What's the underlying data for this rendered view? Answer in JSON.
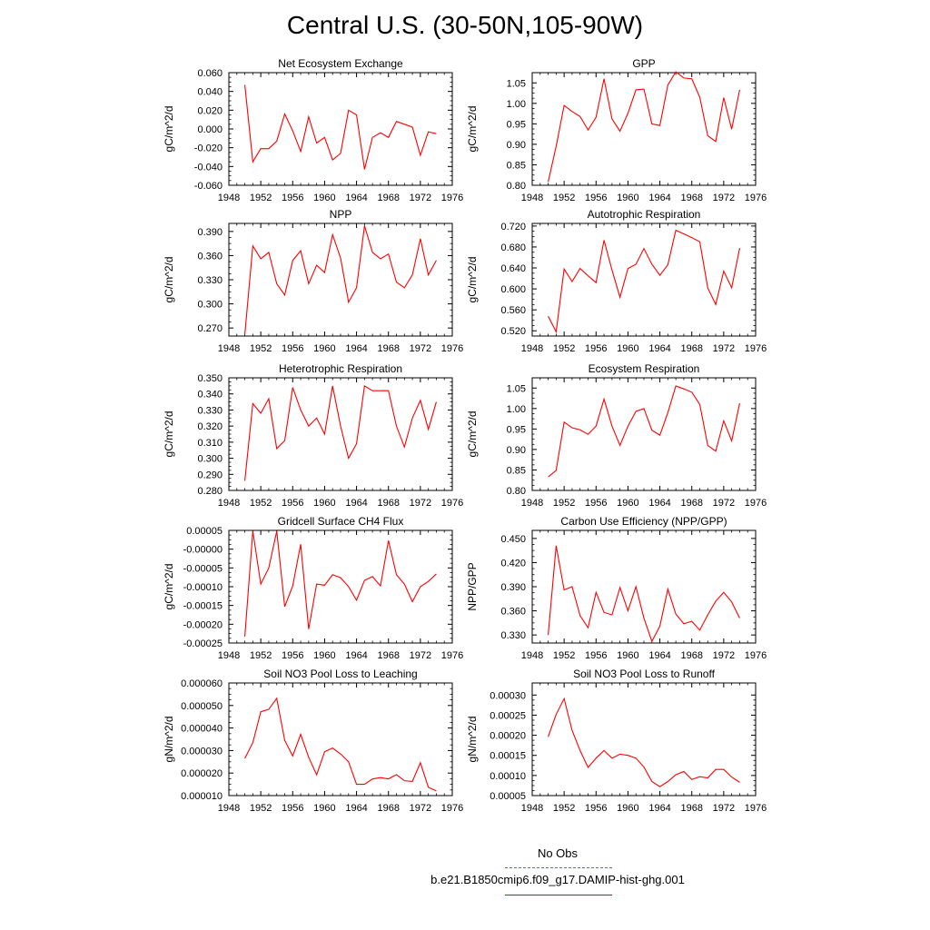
{
  "page_title": "Central U.S. (30-50N,105-90W)",
  "legend": {
    "items": [
      {
        "label": "No Obs",
        "color": "#5f5fdf",
        "style": "dashed"
      },
      {
        "label": "b.e21.B1850cmip6.f09_g17.DAMIP-hist-ghg.001",
        "color": "#e00000",
        "style": "solid"
      }
    ]
  },
  "line_color": "#ff0000",
  "chart_data": [
    {
      "type": "line",
      "title": "Net Ecosystem Exchange",
      "xlabel": "",
      "ylabel": "gC/m^2/d",
      "xlim": [
        1948,
        1976
      ],
      "ylim": [
        -0.06,
        0.06
      ],
      "xticks": [
        1948,
        1952,
        1956,
        1960,
        1964,
        1968,
        1972,
        1976
      ],
      "yticks": [
        -0.06,
        -0.04,
        -0.02,
        0.0,
        0.02,
        0.04,
        0.06
      ],
      "ytick_labels": [
        "-0.060",
        "-0.040",
        "-0.020",
        "0.000",
        "0.020",
        "0.040",
        "0.060"
      ],
      "x": [
        1950,
        1951,
        1952,
        1953,
        1954,
        1955,
        1956,
        1957,
        1958,
        1959,
        1960,
        1961,
        1962,
        1963,
        1964,
        1965,
        1966,
        1967,
        1968,
        1969,
        1970,
        1971,
        1972,
        1973,
        1974
      ],
      "series": [
        {
          "values": [
            0.047,
            -0.035,
            -0.021,
            -0.021,
            -0.013,
            0.016,
            -0.002,
            -0.024,
            0.013,
            -0.015,
            -0.009,
            -0.033,
            -0.026,
            0.02,
            0.015,
            -0.043,
            -0.009,
            -0.004,
            -0.009,
            0.008,
            0.005,
            0.002,
            -0.028,
            -0.003,
            -0.005
          ]
        }
      ]
    },
    {
      "type": "line",
      "title": "GPP",
      "xlabel": "",
      "ylabel": "gC/m^2/d",
      "xlim": [
        1948,
        1976
      ],
      "ylim": [
        0.8,
        1.075
      ],
      "xticks": [
        1948,
        1952,
        1956,
        1960,
        1964,
        1968,
        1972,
        1976
      ],
      "yticks": [
        0.8,
        0.85,
        0.9,
        0.95,
        1.0,
        1.05
      ],
      "ytick_labels": [
        "0.80",
        "0.85",
        "0.90",
        "0.95",
        "1.00",
        "1.05"
      ],
      "x": [
        1950,
        1951,
        1952,
        1953,
        1954,
        1955,
        1956,
        1957,
        1958,
        1959,
        1960,
        1961,
        1962,
        1963,
        1964,
        1965,
        1966,
        1967,
        1968,
        1969,
        1970,
        1971,
        1972,
        1973,
        1974
      ],
      "series": [
        {
          "values": [
            0.808,
            0.895,
            0.995,
            0.98,
            0.968,
            0.935,
            0.966,
            1.06,
            0.962,
            0.932,
            0.976,
            1.033,
            1.035,
            0.95,
            0.946,
            1.045,
            1.077,
            1.062,
            1.06,
            1.015,
            0.921,
            0.907,
            1.014,
            0.937,
            1.033
          ]
        }
      ]
    },
    {
      "type": "line",
      "title": "NPP",
      "xlabel": "",
      "ylabel": "gC/m^2/d",
      "xlim": [
        1948,
        1976
      ],
      "ylim": [
        0.26,
        0.4
      ],
      "xticks": [
        1948,
        1952,
        1956,
        1960,
        1964,
        1968,
        1972,
        1976
      ],
      "yticks": [
        0.27,
        0.3,
        0.33,
        0.36,
        0.39
      ],
      "ytick_labels": [
        "0.270",
        "0.300",
        "0.330",
        "0.360",
        "0.390"
      ],
      "x": [
        1950,
        1951,
        1952,
        1953,
        1954,
        1955,
        1956,
        1957,
        1958,
        1959,
        1960,
        1961,
        1962,
        1963,
        1964,
        1965,
        1966,
        1967,
        1968,
        1969,
        1970,
        1971,
        1972,
        1973,
        1974
      ],
      "series": [
        {
          "values": [
            0.262,
            0.372,
            0.356,
            0.364,
            0.325,
            0.311,
            0.354,
            0.366,
            0.325,
            0.348,
            0.339,
            0.386,
            0.357,
            0.302,
            0.32,
            0.397,
            0.364,
            0.356,
            0.362,
            0.327,
            0.32,
            0.336,
            0.381,
            0.336,
            0.354
          ]
        }
      ]
    },
    {
      "type": "line",
      "title": "Autotrophic Respiration",
      "xlabel": "",
      "ylabel": "gC/m^2/d",
      "xlim": [
        1948,
        1976
      ],
      "ylim": [
        0.51,
        0.725
      ],
      "xticks": [
        1948,
        1952,
        1956,
        1960,
        1964,
        1968,
        1972,
        1976
      ],
      "yticks": [
        0.52,
        0.56,
        0.6,
        0.64,
        0.68,
        0.72
      ],
      "ytick_labels": [
        "0.520",
        "0.560",
        "0.600",
        "0.640",
        "0.680",
        "0.720"
      ],
      "x": [
        1950,
        1951,
        1952,
        1953,
        1954,
        1955,
        1956,
        1957,
        1958,
        1959,
        1960,
        1961,
        1962,
        1963,
        1964,
        1965,
        1966,
        1967,
        1968,
        1969,
        1970,
        1971,
        1972,
        1973,
        1974
      ],
      "series": [
        {
          "values": [
            0.548,
            0.518,
            0.638,
            0.614,
            0.639,
            0.625,
            0.612,
            0.693,
            0.636,
            0.584,
            0.639,
            0.647,
            0.677,
            0.647,
            0.626,
            0.646,
            0.712,
            0.705,
            0.698,
            0.69,
            0.602,
            0.57,
            0.634,
            0.602,
            0.678
          ]
        }
      ]
    },
    {
      "type": "line",
      "title": "Heterotrophic Respiration",
      "xlabel": "",
      "ylabel": "gC/m^2/d",
      "xlim": [
        1948,
        1976
      ],
      "ylim": [
        0.28,
        0.35
      ],
      "xticks": [
        1948,
        1952,
        1956,
        1960,
        1964,
        1968,
        1972,
        1976
      ],
      "yticks": [
        0.28,
        0.29,
        0.3,
        0.31,
        0.32,
        0.33,
        0.34,
        0.35
      ],
      "ytick_labels": [
        "0.280",
        "0.290",
        "0.300",
        "0.310",
        "0.320",
        "0.330",
        "0.340",
        "0.350"
      ],
      "x": [
        1950,
        1951,
        1952,
        1953,
        1954,
        1955,
        1956,
        1957,
        1958,
        1959,
        1960,
        1961,
        1962,
        1963,
        1964,
        1965,
        1966,
        1967,
        1968,
        1969,
        1970,
        1971,
        1972,
        1973,
        1974
      ],
      "series": [
        {
          "values": [
            0.286,
            0.334,
            0.328,
            0.337,
            0.306,
            0.311,
            0.344,
            0.33,
            0.32,
            0.325,
            0.315,
            0.345,
            0.32,
            0.3,
            0.309,
            0.345,
            0.342,
            0.342,
            0.342,
            0.32,
            0.307,
            0.325,
            0.336,
            0.318,
            0.335
          ]
        }
      ]
    },
    {
      "type": "line",
      "title": "Ecosystem Respiration",
      "xlabel": "",
      "ylabel": "gC/m^2/d",
      "xlim": [
        1948,
        1976
      ],
      "ylim": [
        0.8,
        1.075
      ],
      "xticks": [
        1948,
        1952,
        1956,
        1960,
        1964,
        1968,
        1972,
        1976
      ],
      "yticks": [
        0.8,
        0.85,
        0.9,
        0.95,
        1.0,
        1.05
      ],
      "ytick_labels": [
        "0.80",
        "0.85",
        "0.90",
        "0.95",
        "1.00",
        "1.05"
      ],
      "x": [
        1950,
        1951,
        1952,
        1953,
        1954,
        1955,
        1956,
        1957,
        1958,
        1959,
        1960,
        1961,
        1962,
        1963,
        1964,
        1965,
        1966,
        1967,
        1968,
        1969,
        1970,
        1971,
        1972,
        1973,
        1974
      ],
      "series": [
        {
          "values": [
            0.833,
            0.849,
            0.967,
            0.953,
            0.948,
            0.937,
            0.957,
            1.023,
            0.957,
            0.91,
            0.957,
            0.993,
            1.0,
            0.947,
            0.935,
            0.99,
            1.055,
            1.048,
            1.04,
            1.01,
            0.91,
            0.896,
            0.97,
            0.921,
            1.013
          ]
        }
      ]
    },
    {
      "type": "line",
      "title": "Gridcell Surface CH4 Flux",
      "xlabel": "",
      "ylabel": "gC/m^2/d",
      "xlim": [
        1948,
        1976
      ],
      "ylim": [
        -0.00025,
        5e-05
      ],
      "xticks": [
        1948,
        1952,
        1956,
        1960,
        1964,
        1968,
        1972,
        1976
      ],
      "yticks": [
        -0.00025,
        -0.0002,
        -0.00015,
        -0.0001,
        -5e-05,
        0.0,
        5e-05
      ],
      "ytick_labels": [
        "-0.00025",
        "-0.00020",
        "-0.00015",
        "-0.00010",
        "-0.00005",
        "-0.00000",
        "0.00005"
      ],
      "x": [
        1950,
        1951,
        1952,
        1953,
        1954,
        1955,
        1956,
        1957,
        1958,
        1959,
        1960,
        1961,
        1962,
        1963,
        1964,
        1965,
        1966,
        1967,
        1968,
        1969,
        1970,
        1971,
        1972,
        1973,
        1974
      ],
      "series": [
        {
          "values": [
            -0.000233,
            4.8e-05,
            -9.3e-05,
            -5e-05,
            4.8e-05,
            -0.000153,
            -9.8e-05,
            1.3e-05,
            -0.000213,
            -9.3e-05,
            -9.6e-05,
            -6.8e-05,
            -7.6e-05,
            -0.0001,
            -0.000136,
            -8.3e-05,
            -7.3e-05,
            -9.8e-05,
            2.3e-05,
            -6.8e-05,
            -9.3e-05,
            -0.00014,
            -0.0001,
            -8.6e-05,
            -6.6e-05
          ]
        }
      ]
    },
    {
      "type": "line",
      "title": "Carbon Use Efficiency (NPP/GPP)",
      "xlabel": "",
      "ylabel": "NPP/GPP",
      "xlim": [
        1948,
        1976
      ],
      "ylim": [
        0.32,
        0.46
      ],
      "xticks": [
        1948,
        1952,
        1956,
        1960,
        1964,
        1968,
        1972,
        1976
      ],
      "yticks": [
        0.33,
        0.36,
        0.39,
        0.42,
        0.45
      ],
      "ytick_labels": [
        "0.330",
        "0.360",
        "0.390",
        "0.420",
        "0.450"
      ],
      "x": [
        1950,
        1951,
        1952,
        1953,
        1954,
        1955,
        1956,
        1957,
        1958,
        1959,
        1960,
        1961,
        1962,
        1963,
        1964,
        1965,
        1966,
        1967,
        1968,
        1969,
        1970,
        1971,
        1972,
        1973,
        1974
      ],
      "series": [
        {
          "values": [
            0.33,
            0.441,
            0.386,
            0.39,
            0.354,
            0.339,
            0.383,
            0.358,
            0.355,
            0.389,
            0.36,
            0.39,
            0.351,
            0.322,
            0.341,
            0.387,
            0.356,
            0.344,
            0.347,
            0.336,
            0.355,
            0.372,
            0.383,
            0.371,
            0.351
          ]
        }
      ]
    },
    {
      "type": "line",
      "title": "Soil NO3 Pool Loss to Leaching",
      "xlabel": "",
      "ylabel": "gN/m^2/d",
      "xlim": [
        1948,
        1976
      ],
      "ylim": [
        1e-05,
        6e-05
      ],
      "xticks": [
        1948,
        1952,
        1956,
        1960,
        1964,
        1968,
        1972,
        1976
      ],
      "yticks": [
        1e-05,
        2e-05,
        3e-05,
        4e-05,
        5e-05,
        6e-05
      ],
      "ytick_labels": [
        "0.000010",
        "0.000020",
        "0.000030",
        "0.000040",
        "0.000050",
        "0.000060"
      ],
      "x": [
        1950,
        1951,
        1952,
        1953,
        1954,
        1955,
        1956,
        1957,
        1958,
        1959,
        1960,
        1961,
        1962,
        1963,
        1964,
        1965,
        1966,
        1967,
        1968,
        1969,
        1970,
        1971,
        1972,
        1973,
        1974
      ],
      "series": [
        {
          "values": [
            2.65e-05,
            3.35e-05,
            4.72e-05,
            4.83e-05,
            5.32e-05,
            3.45e-05,
            2.76e-05,
            3.72e-05,
            2.7e-05,
            1.92e-05,
            2.95e-05,
            3.11e-05,
            2.85e-05,
            2.5e-05,
            1.5e-05,
            1.5e-05,
            1.74e-05,
            1.8e-05,
            1.74e-05,
            1.93e-05,
            1.66e-05,
            1.63e-05,
            2.46e-05,
            1.37e-05,
            1.21e-05
          ]
        }
      ]
    },
    {
      "type": "line",
      "title": "Soil NO3 Pool Loss to Runoff",
      "xlabel": "",
      "ylabel": "gN/m^2/d",
      "xlim": [
        1948,
        1976
      ],
      "ylim": [
        5e-05,
        0.00033
      ],
      "xticks": [
        1948,
        1952,
        1956,
        1960,
        1964,
        1968,
        1972,
        1976
      ],
      "yticks": [
        5e-05,
        0.0001,
        0.00015,
        0.0002,
        0.00025,
        0.0003
      ],
      "ytick_labels": [
        "0.00005",
        "0.00010",
        "0.00015",
        "0.00020",
        "0.00025",
        "0.00030"
      ],
      "x": [
        1950,
        1951,
        1952,
        1953,
        1954,
        1955,
        1956,
        1957,
        1958,
        1959,
        1960,
        1961,
        1962,
        1963,
        1964,
        1965,
        1966,
        1967,
        1968,
        1969,
        1970,
        1971,
        1972,
        1973,
        1974
      ],
      "series": [
        {
          "values": [
            0.000196,
            0.000252,
            0.000291,
            0.000212,
            0.000162,
            0.00012,
            0.000143,
            0.000162,
            0.000143,
            0.000153,
            0.00015,
            0.000143,
            0.000121,
            8.5e-05,
            7.2e-05,
            8.5e-05,
            0.000102,
            0.00011,
            9e-05,
            9.7e-05,
            9.4e-05,
            0.000115,
            0.000115,
            9.6e-05,
            8.3e-05
          ]
        }
      ]
    }
  ]
}
